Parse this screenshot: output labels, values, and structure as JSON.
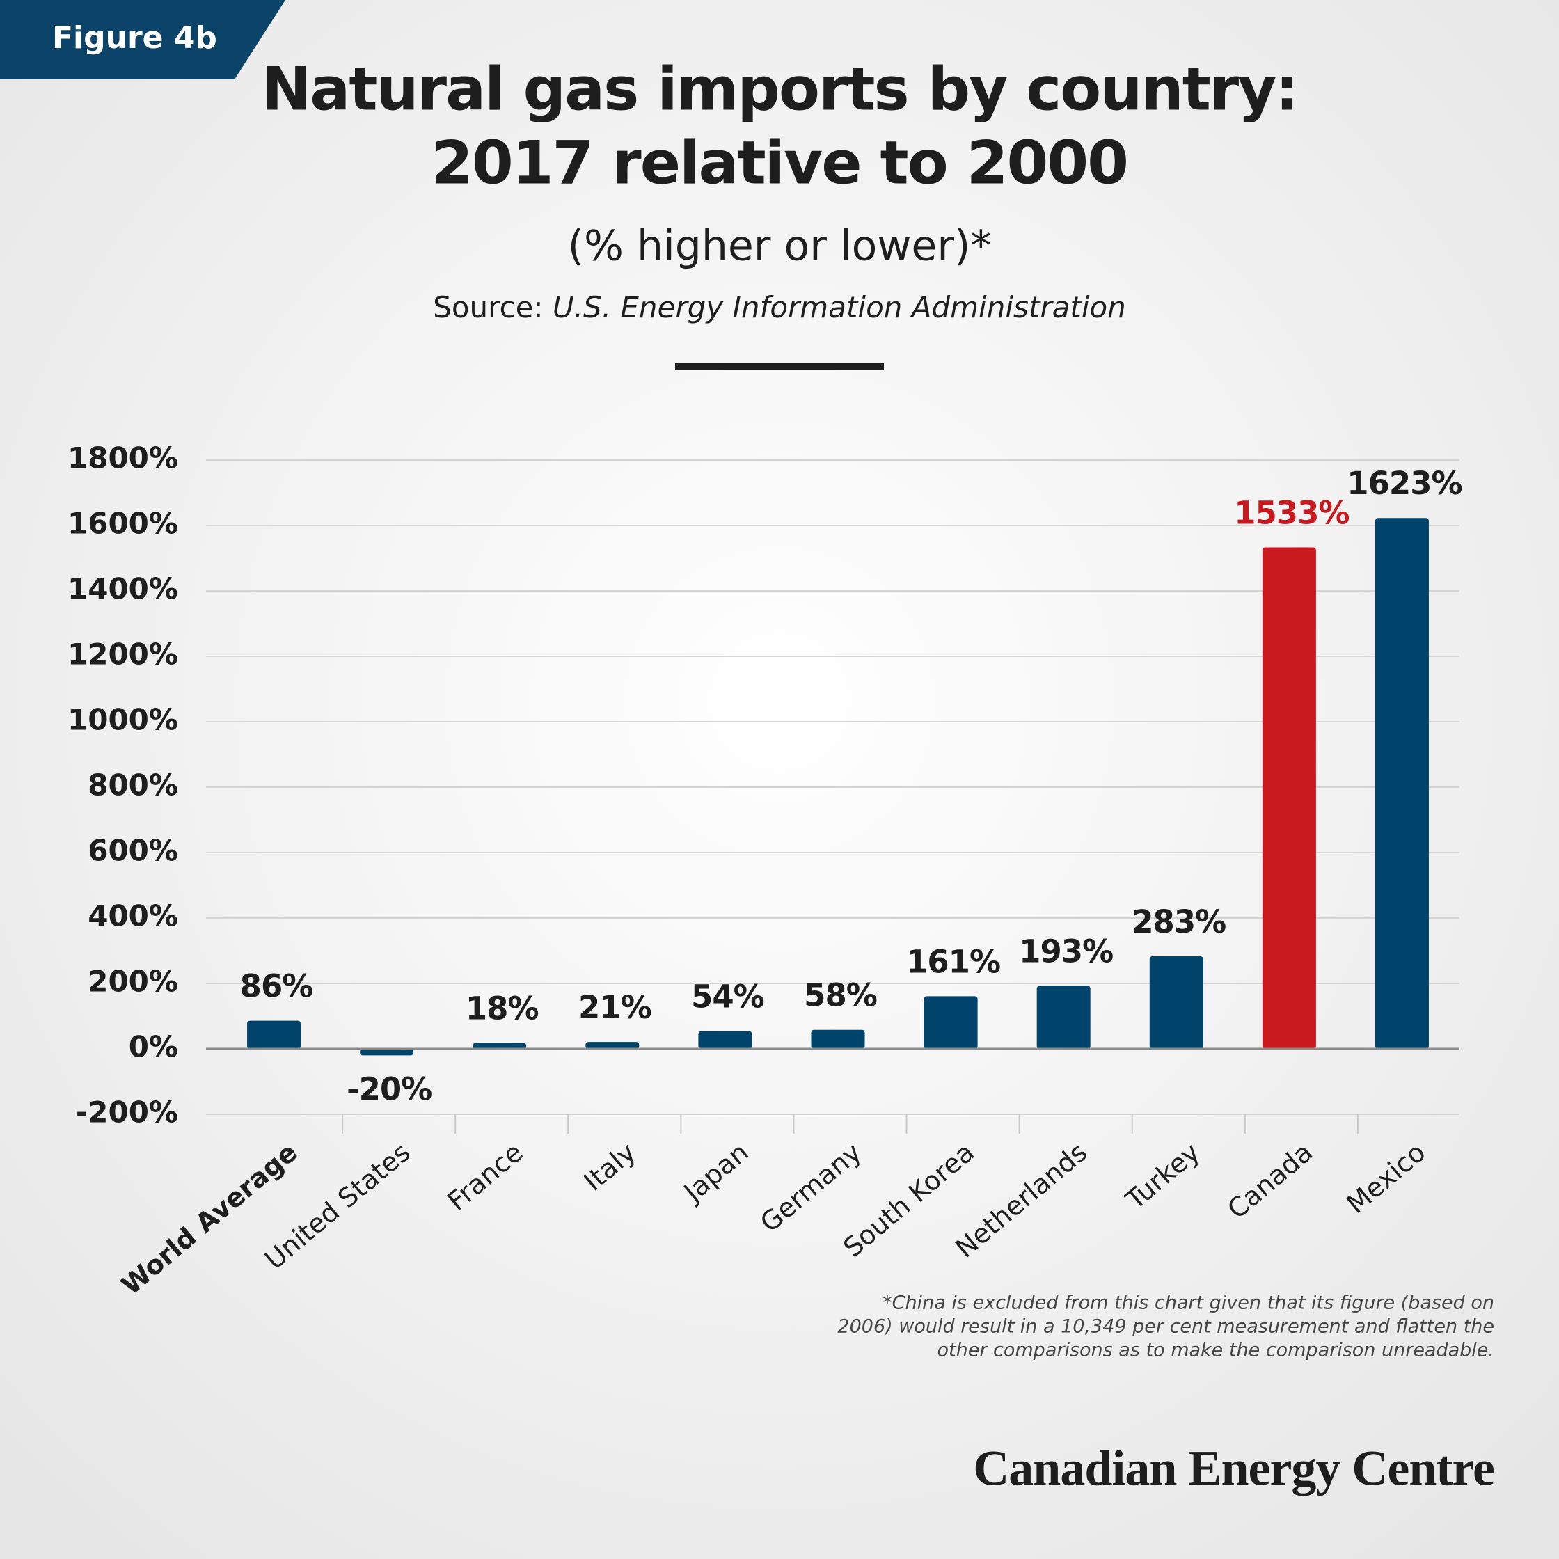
{
  "figure_label": "Figure 4b",
  "chart_data": {
    "type": "bar",
    "title": [
      "Natural gas imports by country:",
      "2017 relative to 2000"
    ],
    "subtitle": "(% higher or lower)*",
    "source": {
      "label": "Source:",
      "name": "U.S. Energy Information Administration"
    },
    "categories": [
      "World Average",
      "United States",
      "France",
      "Italy",
      "Japan",
      "Germany",
      "South Korea",
      "Netherlands",
      "Turkey",
      "Canada",
      "Mexico"
    ],
    "values": [
      86,
      -20,
      18,
      21,
      54,
      58,
      161,
      193,
      283,
      1533,
      1623
    ],
    "value_labels": [
      "86%",
      "-20%",
      "18%",
      "21%",
      "54%",
      "58%",
      "161%",
      "193%",
      "283%",
      "1533%",
      "1623%"
    ],
    "color": "#00446b",
    "colors": [
      "#00446b",
      "#00446b",
      "#00446b",
      "#00446b",
      "#00446b",
      "#00446b",
      "#00446b",
      "#00446b",
      "#00446b",
      "#c8191e",
      "#00446b"
    ],
    "ylim": [
      -200,
      1800
    ],
    "yticks": [
      {
        "value": -200,
        "label": "-200%"
      },
      {
        "value": 0,
        "label": "0%"
      },
      {
        "value": 200,
        "label": "200%"
      },
      {
        "value": 400,
        "label": "400%"
      },
      {
        "value": 600,
        "label": "600%"
      },
      {
        "value": 800,
        "label": "800%"
      },
      {
        "value": 1000,
        "label": "1000%"
      },
      {
        "value": 1200,
        "label": "1200%"
      },
      {
        "value": 1400,
        "label": "1400%"
      },
      {
        "value": 1600,
        "label": "1600%"
      },
      {
        "value": 1800,
        "label": "1800%"
      }
    ],
    "grid": true,
    "footnote": [
      "*China is excluded from this chart given that its figure (based on",
      "2006) would result in a 10,349 per cent measurement and flatten the",
      "other comparisons as to make the comparison unreadable."
    ]
  },
  "brand": "Canadian Energy Centre"
}
